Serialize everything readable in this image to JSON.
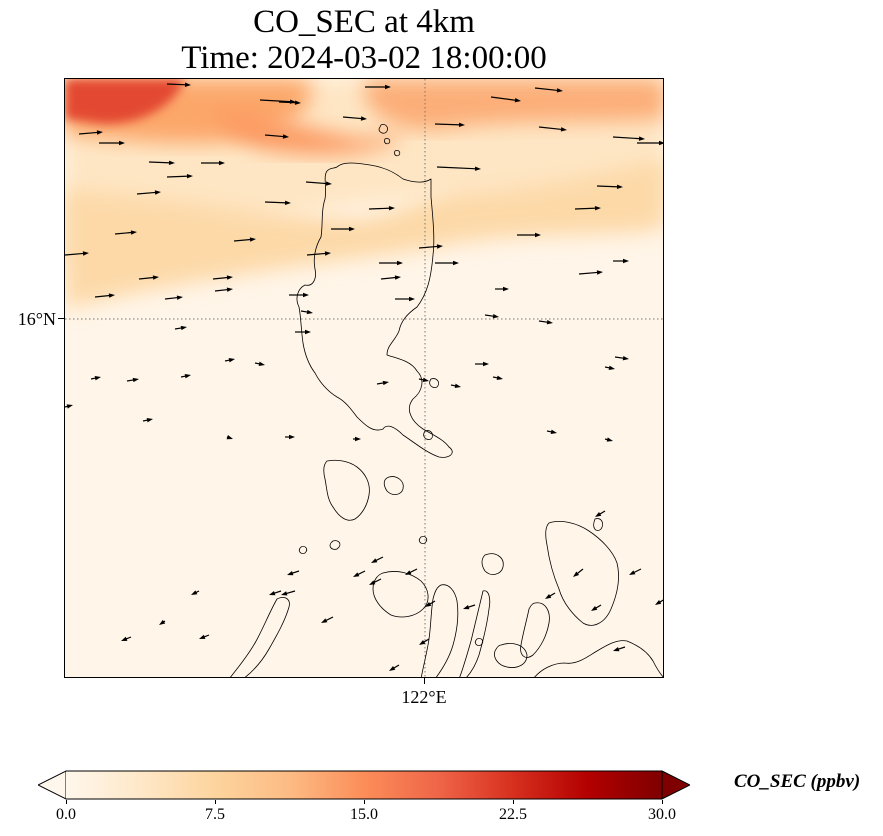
{
  "title": {
    "line1": "CO_SEC at 4km",
    "line2": "Time: 2024-03-02 18:00:00"
  },
  "map": {
    "lat_gridline_label": "16°N",
    "lon_gridline_label": "122°E",
    "gridline_style": "dotted"
  },
  "colorbar": {
    "label": "CO_SEC (ppbv)",
    "min": 0.0,
    "max": 30.0,
    "ticks": [
      "0.0",
      "7.5",
      "15.0",
      "22.5",
      "30.0"
    ],
    "extend": "both",
    "colormap": "OrRd",
    "colors": [
      "#fff7ec",
      "#fee8c8",
      "#fdd49e",
      "#fdbb84",
      "#fc8d59",
      "#ef6548",
      "#d7301f",
      "#b30000",
      "#7f0000"
    ]
  },
  "colors": {
    "coastline": "#000000",
    "wind_arrow": "#000000",
    "gridline": "#888888"
  }
}
